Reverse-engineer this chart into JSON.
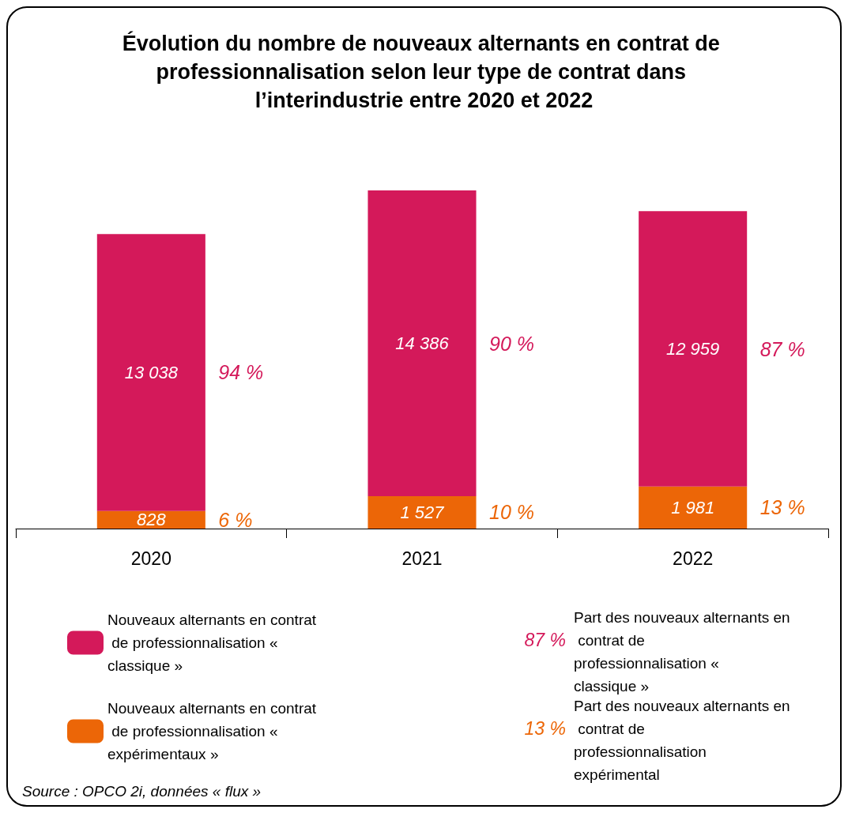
{
  "chart_data": {
    "type": "bar",
    "title": "Évolution du nombre de nouveaux alternants en contrat de professionnalisation selon leur type de contrat dans l’interindustrie entre 2020 et 2022",
    "categories": [
      "2020",
      "2021",
      "2022"
    ],
    "stacked": true,
    "data_labels": true,
    "legend": "bottom left",
    "series": [
      {
        "name": "Nouveaux alternants en contrat de professionnalisation « expérimentaux »",
        "color": "#ec6607",
        "values": [
          828,
          1527,
          1981
        ]
      },
      {
        "name": "Nouveaux alternants en contrat de professionnalisation « classique »",
        "color": "#d4195a",
        "values": [
          13038,
          14386,
          12959
        ]
      }
    ],
    "annotations": [
      "6 %",
      "10 %",
      "13 %",
      "94 %",
      "90 %",
      "87 %",
      "87 %",
      "Part des nouveaux alternants en contrat de professionnalisation « classique »",
      "13 %",
      "Part des nouveaux alternants en contrat de professionnalisation expérimental",
      "Source : OPCO 2i, données « flux »"
    ]
  }
}
